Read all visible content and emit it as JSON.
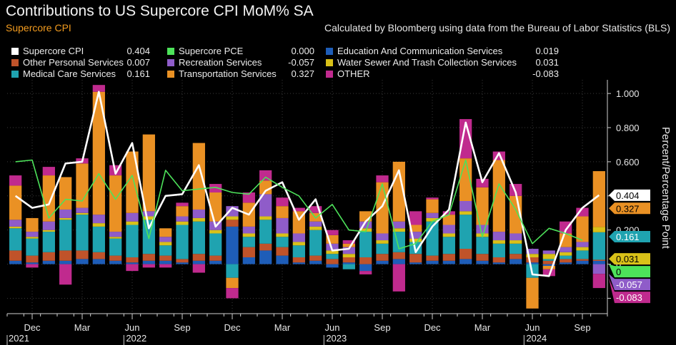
{
  "header": {
    "title": "Contributions to US Supercore CPI MoM% SA",
    "subtitle": "Supercore CPI",
    "source": "Calculated by Bloomberg using data from the Bureau of Labor Statistics (BLS)"
  },
  "colors": {
    "background": "#000000",
    "grid": "#3a3a3a",
    "axis": "#d0d0d0"
  },
  "chart_data": {
    "type": "bar",
    "stacked": true,
    "ylabel": "Percent/Percentage Point",
    "ylim": [
      -0.29,
      1.08
    ],
    "yticks": [
      "-0.200",
      "0",
      "0.200",
      "0.400",
      "0.600",
      "0.800",
      "1.000"
    ],
    "yticks_values": [
      -0.2,
      0,
      0.2,
      0.4,
      0.6,
      0.8,
      1.0
    ],
    "grid": true,
    "legend_position": "top",
    "months": [
      "Oct 2021",
      "Nov 2021",
      "Dec 2021",
      "Jan 2022",
      "Feb 2022",
      "Mar 2022",
      "Apr 2022",
      "May 2022",
      "Jun 2022",
      "Jul 2022",
      "Aug 2022",
      "Sep 2022",
      "Oct 2022",
      "Nov 2022",
      "Dec 2022",
      "Jan 2023",
      "Feb 2023",
      "Mar 2023",
      "Apr 2023",
      "May 2023",
      "Jun 2023",
      "Jul 2023",
      "Aug 2023",
      "Sep 2023",
      "Oct 2023",
      "Nov 2023",
      "Dec 2023",
      "Jan 2024",
      "Feb 2024",
      "Mar 2024",
      "Apr 2024",
      "May 2024",
      "Jun 2024",
      "Jul 2024",
      "Aug 2024",
      "Sep 2024"
    ],
    "x_tick_labels": [
      {
        "month_index": 1,
        "label": "Dec"
      },
      {
        "month_index": 4,
        "label": "Mar"
      },
      {
        "month_index": 7,
        "label": "Jun"
      },
      {
        "month_index": 10,
        "label": "Sep"
      },
      {
        "month_index": 13,
        "label": "Dec"
      },
      {
        "month_index": 16,
        "label": "Mar"
      },
      {
        "month_index": 19,
        "label": "Jun"
      },
      {
        "month_index": 22,
        "label": "Sep"
      },
      {
        "month_index": 25,
        "label": "Dec"
      },
      {
        "month_index": 28,
        "label": "Mar"
      },
      {
        "month_index": 31,
        "label": "Jun"
      },
      {
        "month_index": 34,
        "label": "Sep"
      }
    ],
    "year_labels": [
      {
        "month_index": -0.5,
        "label": "2021"
      },
      {
        "month_index": 6.5,
        "label": "2022"
      },
      {
        "month_index": 18.5,
        "label": "2023"
      },
      {
        "month_index": 30.5,
        "label": "2024"
      }
    ],
    "bar_series": [
      {
        "name": "Education And Communication Services",
        "key": "edu",
        "color": "#1e5db8",
        "latest": "0.019",
        "values": [
          0.02,
          0.01,
          0.02,
          0.02,
          0.03,
          0.03,
          0.02,
          0.01,
          0.02,
          0.02,
          0.01,
          0.02,
          0.02,
          0.22,
          0.04,
          0.08,
          0.05,
          0.01,
          0.02,
          -0.02,
          0.01,
          -0.04,
          0.02,
          0.03,
          0.01,
          0.02,
          0.02,
          0.03,
          0.02,
          0.01,
          0.03,
          0.01,
          -0.01,
          0.01,
          0.02,
          0.019
        ]
      },
      {
        "name": "Other Personal Services",
        "key": "ops",
        "color": "#c0532a",
        "latest": "0.007",
        "values": [
          0.06,
          0.04,
          0.05,
          0.06,
          0.05,
          0.04,
          0.03,
          0.03,
          0.04,
          0.03,
          0.02,
          0.04,
          0.03,
          0.04,
          0.06,
          0.04,
          0.05,
          0.03,
          0.03,
          0.03,
          0.03,
          0.04,
          0.04,
          0.04,
          0.05,
          0.03,
          0.04,
          0.06,
          0.04,
          0.03,
          0.03,
          0.03,
          0.02,
          0.02,
          0.01,
          0.007
        ]
      },
      {
        "name": "Medical Care Services",
        "key": "med",
        "color": "#1fa3b0",
        "latest": "0.161",
        "values": [
          0.13,
          0.1,
          0.12,
          0.18,
          0.21,
          0.15,
          0.1,
          0.19,
          0.2,
          0.06,
          0.2,
          0.19,
          0.13,
          -0.08,
          0.06,
          0.14,
          0.06,
          0.07,
          0.15,
          0.03,
          -0.03,
          0.15,
          0.06,
          0.12,
          0.07,
          0.2,
          0.1,
          0.2,
          0.1,
          0.08,
          0.06,
          -0.08,
          0.01,
          0.02,
          0.05,
          0.161
        ]
      },
      {
        "name": "Water Sewer And Trash Collection Services",
        "key": "water",
        "color": "#d9c118",
        "latest": "0.031",
        "values": [
          0.01,
          0.01,
          0.01,
          0.01,
          0.01,
          0.02,
          0.01,
          0.02,
          0.02,
          0.02,
          0.02,
          0.02,
          0.02,
          0.02,
          0.02,
          0.02,
          0.02,
          0.02,
          0.02,
          0.02,
          0.02,
          0.02,
          0.02,
          0.02,
          0.02,
          0.02,
          0.02,
          0.02,
          0.02,
          0.02,
          0.02,
          0.02,
          0.03,
          0.02,
          0.02,
          0.031
        ]
      },
      {
        "name": "Recreation Services",
        "key": "rec",
        "color": "#8f5cc9",
        "latest": "-0.057",
        "values": [
          0.04,
          0.03,
          0.05,
          0.05,
          0.03,
          0.05,
          0.03,
          0.05,
          0.03,
          0.03,
          0.03,
          0.05,
          0.05,
          0.06,
          0.04,
          0.13,
          0.09,
          0.05,
          0.03,
          0.04,
          0.04,
          0.04,
          0.04,
          0.04,
          0.04,
          0.03,
          0.05,
          0.06,
          0.05,
          0.05,
          0.04,
          0.03,
          0.02,
          0.03,
          0.03,
          -0.057
        ]
      },
      {
        "name": "Transportation Services",
        "key": "trans",
        "color": "#ea9124",
        "latest": "0.327",
        "values": [
          0.2,
          0.08,
          0.27,
          0.19,
          0.26,
          0.72,
          0.33,
          0.36,
          0.45,
          0.05,
          0.06,
          0.39,
          0.17,
          -0.06,
          0.14,
          0.08,
          0.07,
          0.13,
          0.05,
          0.05,
          0.02,
          0.06,
          0.3,
          0.35,
          0.04,
          0.08,
          0.06,
          0.25,
          0.22,
          0.42,
          0.22,
          -0.18,
          -0.02,
          0.08,
          0.15,
          0.327
        ]
      },
      {
        "name": "OTHER",
        "key": "other",
        "color": "#c02a8e",
        "latest": "-0.083",
        "values": [
          0.06,
          -0.02,
          0.05,
          -0.12,
          0.03,
          0.04,
          0.06,
          -0.04,
          -0.02,
          -0.02,
          0.02,
          -0.05,
          0.05,
          -0.06,
          0.06,
          0.06,
          0.05,
          0.02,
          0.04,
          0.03,
          0.02,
          -0.02,
          0.04,
          -0.16,
          0.08,
          0.01,
          0.02,
          0.23,
          0.05,
          0.05,
          0.07,
          0.0,
          -0.04,
          0.07,
          0.05,
          -0.083
        ]
      }
    ],
    "line_series": [
      {
        "name": "Supercore CPI",
        "key": "scpi",
        "color": "#ffffff",
        "latest": "0.404",
        "values": [
          0.4,
          0.33,
          0.35,
          0.59,
          0.6,
          1.01,
          0.53,
          0.71,
          0.21,
          0.4,
          0.41,
          0.58,
          0.22,
          0.33,
          0.29,
          0.43,
          0.48,
          0.26,
          0.38,
          0.08,
          0.09,
          0.25,
          0.34,
          0.55,
          0.07,
          0.22,
          0.32,
          0.83,
          0.48,
          0.65,
          0.42,
          -0.06,
          -0.07,
          0.2,
          0.33,
          0.404
        ]
      },
      {
        "name": "Supercore PCE",
        "key": "spce",
        "color": "#4de25a",
        "latest": "0.000",
        "values": [
          0.6,
          0.61,
          0.27,
          0.38,
          0.37,
          0.53,
          0.38,
          0.52,
          0.15,
          0.55,
          0.43,
          0.44,
          0.45,
          0.42,
          0.41,
          0.51,
          0.45,
          0.4,
          0.27,
          0.35,
          0.2,
          0.19,
          0.47,
          0.09,
          0.12,
          0.25,
          0.29,
          0.61,
          0.16,
          0.47,
          0.32,
          0.12,
          0.21,
          0.18,
          0.14,
          null
        ]
      }
    ],
    "right_labels": [
      {
        "key": "trans",
        "value": 0.327,
        "text": "0.327",
        "bg": "#ea9124",
        "fg": "#000000"
      },
      {
        "key": "scpi",
        "value": 0.404,
        "text": "0.404",
        "bg": "#ffffff",
        "fg": "#000000"
      },
      {
        "key": "med",
        "value": 0.161,
        "text": "0.161",
        "bg": "#1fa3b0",
        "fg": "#ffffff"
      },
      {
        "key": "water",
        "value": 0.031,
        "text": "0.031",
        "bg": "#d9c118",
        "fg": "#000000"
      },
      {
        "key": "spce",
        "value": 0.0,
        "text": "0",
        "bg": "#4de25a",
        "fg": "#000000"
      },
      {
        "key": "rec",
        "value": -0.057,
        "text": "-0.057",
        "bg": "#8f5cc9",
        "fg": "#ffffff"
      },
      {
        "key": "other",
        "value": -0.083,
        "text": "-0.083",
        "bg": "#c02a8e",
        "fg": "#ffffff"
      }
    ]
  },
  "legend": {
    "items": [
      {
        "name": "Supercore CPI",
        "value": "0.404",
        "color": "#ffffff"
      },
      {
        "name": "Supercore PCE",
        "value": "0.000",
        "color": "#4de25a"
      },
      {
        "name": "Education And Communication Services",
        "value": "0.019",
        "color": "#1e5db8"
      },
      {
        "name": "Other Personal Services",
        "value": "0.007",
        "color": "#c0532a"
      },
      {
        "name": "Recreation Services",
        "value": "-0.057",
        "color": "#8f5cc9"
      },
      {
        "name": "Water Sewer And Trash Collection Services",
        "value": "0.031",
        "color": "#d9c118"
      },
      {
        "name": "Medical Care Services",
        "value": "0.161",
        "color": "#1fa3b0"
      },
      {
        "name": "Transportation Services",
        "value": "0.327",
        "color": "#ea9124"
      },
      {
        "name": "OTHER",
        "value": "-0.083",
        "color": "#c02a8e"
      }
    ]
  }
}
